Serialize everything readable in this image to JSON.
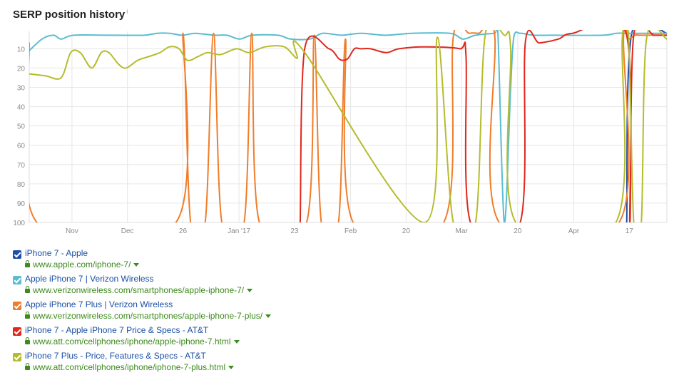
{
  "header": {
    "title": "SERP position history",
    "info_mark": "i"
  },
  "chart_data": {
    "type": "line",
    "title": "SERP position history",
    "y_reversed": true,
    "ylim": [
      1,
      100
    ],
    "yticks": [
      "10",
      "20",
      "30",
      "40",
      "50",
      "60",
      "70",
      "80",
      "90",
      "100"
    ],
    "y_tick_values": [
      10,
      20,
      30,
      40,
      50,
      60,
      70,
      80,
      90,
      100
    ],
    "xlim": [
      0,
      100
    ],
    "xticks": [
      {
        "label": "Nov",
        "x": 6.7
      },
      {
        "label": "Dec",
        "x": 15.4
      },
      {
        "label": "26",
        "x": 24.1
      },
      {
        "label": "Jan '17",
        "x": 32.9
      },
      {
        "label": "23",
        "x": 41.6
      },
      {
        "label": "Feb",
        "x": 50.4
      },
      {
        "label": "20",
        "x": 59.1
      },
      {
        "label": "Mar",
        "x": 67.8
      },
      {
        "label": "20",
        "x": 76.6
      },
      {
        "label": "Apr",
        "x": 85.4
      },
      {
        "label": "17",
        "x": 94.1
      }
    ],
    "grid": true,
    "series": [
      {
        "name": "iPhone 7 - Apple",
        "color": "#1f4ea6",
        "points": [
          [
            93.7,
            100
          ],
          [
            94.5,
            2
          ],
          [
            100,
            2
          ]
        ]
      },
      {
        "name": "Apple iPhone 7 | Verizon Wireless",
        "color": "#5bbcd0",
        "points": [
          [
            0,
            11
          ],
          [
            2,
            5
          ],
          [
            3.8,
            3
          ],
          [
            5,
            5
          ],
          [
            7,
            3
          ],
          [
            13,
            3
          ],
          [
            18,
            3
          ],
          [
            20,
            2
          ],
          [
            22,
            2
          ],
          [
            24,
            3
          ],
          [
            26,
            2
          ],
          [
            29,
            3
          ],
          [
            31,
            3
          ],
          [
            33,
            5
          ],
          [
            35,
            3
          ],
          [
            39,
            3
          ],
          [
            41,
            5
          ],
          [
            44,
            5
          ],
          [
            46,
            2
          ],
          [
            49,
            3
          ],
          [
            52,
            2
          ],
          [
            56,
            3
          ],
          [
            60,
            2
          ],
          [
            66,
            2
          ],
          [
            68,
            5
          ],
          [
            70,
            3
          ],
          [
            73,
            2
          ],
          [
            73.5,
            2
          ],
          [
            74.5,
            100
          ],
          [
            75.5,
            30
          ],
          [
            76,
            4
          ],
          [
            77,
            2
          ],
          [
            79,
            3
          ],
          [
            82,
            3
          ],
          [
            90,
            3
          ],
          [
            92,
            2
          ],
          [
            94,
            2
          ],
          [
            97,
            2
          ],
          [
            100,
            2
          ]
        ]
      },
      {
        "name": "Apple iPhone 7 Plus | Verizon Wireless",
        "color": "#f07d2b",
        "points": [
          [
            0,
            7
          ],
          [
            1.2,
            100
          ],
          [
            23,
            100
          ],
          [
            24.1,
            2
          ],
          [
            25.3,
            100
          ],
          [
            27.6,
            100
          ],
          [
            28.9,
            2
          ],
          [
            30.2,
            100
          ],
          [
            33.7,
            100
          ],
          [
            34.9,
            2
          ],
          [
            36.1,
            100
          ],
          [
            43.5,
            100
          ],
          [
            44.7,
            3
          ],
          [
            45.8,
            100
          ],
          [
            48.5,
            100
          ],
          [
            49.6,
            5
          ],
          [
            50.8,
            100
          ],
          [
            65,
            100
          ],
          [
            66.5,
            4
          ],
          [
            69,
            2
          ],
          [
            70.5,
            2
          ],
          [
            73,
            3
          ],
          [
            73.7,
            100
          ],
          [
            92.5,
            100
          ],
          [
            93.2,
            4
          ],
          [
            94,
            5
          ],
          [
            95,
            3
          ],
          [
            96,
            3
          ],
          [
            100,
            3
          ]
        ]
      },
      {
        "name": "iPhone 7 - Apple iPhone 7 Price & Specs - AT&T",
        "color": "#e1261c",
        "points": [
          [
            42.5,
            100
          ],
          [
            43.2,
            10
          ],
          [
            47,
            10
          ],
          [
            48.5,
            15
          ],
          [
            49.2,
            16
          ],
          [
            50,
            15
          ],
          [
            51,
            10
          ],
          [
            52,
            10
          ],
          [
            53.5,
            10
          ],
          [
            56,
            12
          ],
          [
            58,
            10
          ],
          [
            62,
            9
          ],
          [
            67.5,
            10
          ],
          [
            68.5,
            14
          ],
          [
            69.2,
            100
          ],
          [
            77,
            100
          ],
          [
            77.8,
            7
          ],
          [
            80,
            7
          ],
          [
            83,
            5
          ],
          [
            85.2,
            2
          ],
          [
            93.6,
            2
          ],
          [
            94.2,
            100
          ],
          [
            94.8,
            3
          ],
          [
            98,
            3
          ],
          [
            100,
            3
          ]
        ]
      },
      {
        "name": "iPhone 7 Plus - Price, Features & Specs - AT&T",
        "color": "#b5bc2c",
        "points": [
          [
            0,
            23
          ],
          [
            2.5,
            24
          ],
          [
            5,
            25
          ],
          [
            6.5,
            12
          ],
          [
            8,
            12
          ],
          [
            9.8,
            20
          ],
          [
            11.3,
            12
          ],
          [
            12.5,
            12
          ],
          [
            14,
            18
          ],
          [
            15.2,
            20
          ],
          [
            17,
            16
          ],
          [
            18.8,
            14
          ],
          [
            20.5,
            12
          ],
          [
            22,
            9
          ],
          [
            23.5,
            10
          ],
          [
            24.8,
            16
          ],
          [
            26.5,
            14
          ],
          [
            28,
            12
          ],
          [
            30,
            13
          ],
          [
            32.5,
            10
          ],
          [
            34.5,
            12
          ],
          [
            37,
            9
          ],
          [
            40,
            9
          ],
          [
            42,
            15
          ],
          [
            43,
            11
          ],
          [
            62,
            100
          ],
          [
            64,
            4
          ],
          [
            66.5,
            100
          ],
          [
            70,
            100
          ],
          [
            71.5,
            3
          ],
          [
            74.5,
            3
          ],
          [
            75.5,
            10
          ],
          [
            76.3,
            100
          ],
          [
            92,
            100
          ],
          [
            93,
            5
          ],
          [
            94,
            5
          ],
          [
            94.8,
            100
          ],
          [
            96,
            100
          ],
          [
            96.8,
            5
          ],
          [
            100,
            5
          ]
        ]
      }
    ]
  },
  "legend": [
    {
      "title": "iPhone 7 - Apple",
      "url": "www.apple.com/iphone-7/",
      "color": "#1f4ea6"
    },
    {
      "title": "Apple iPhone 7 | Verizon Wireless",
      "url": "www.verizonwireless.com/smartphones/apple-iphone-7/",
      "color": "#5bbcd0"
    },
    {
      "title": "Apple iPhone 7 Plus | Verizon Wireless",
      "url": "www.verizonwireless.com/smartphones/apple-iphone-7-plus/",
      "color": "#f07d2b"
    },
    {
      "title": "iPhone 7 - Apple iPhone 7 Price & Specs - AT&T",
      "url": "www.att.com/cellphones/iphone/apple-iphone-7.html",
      "color": "#e1261c"
    },
    {
      "title": "iPhone 7 Plus - Price, Features & Specs - AT&T",
      "url": "www.att.com/cellphones/iphone/iphone-7-plus.html",
      "color": "#b5bc2c"
    }
  ],
  "colors": {
    "link": "#1a4fa3",
    "url": "#3d8a1e",
    "grid": "#e6e6e6"
  }
}
